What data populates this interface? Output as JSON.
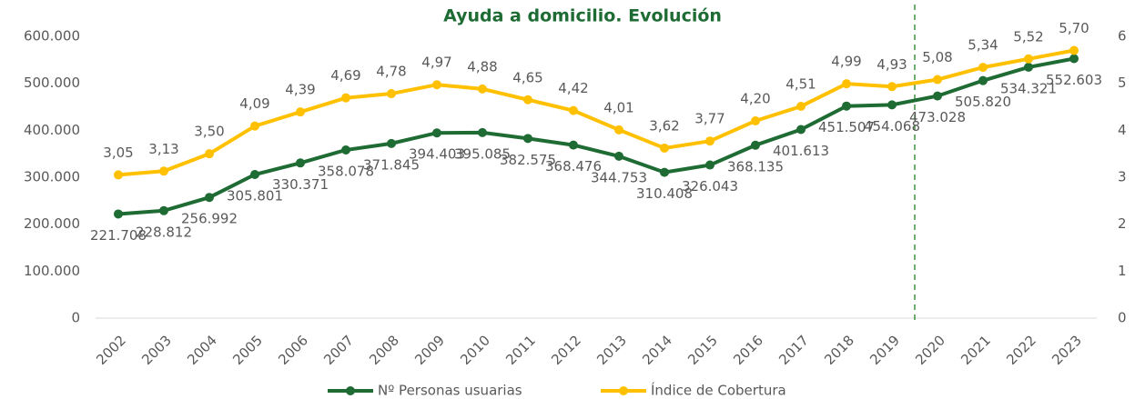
{
  "chart_data": {
    "type": "line",
    "title": "Ayuda a domicilio.  Evolución",
    "categories": [
      "2002",
      "2003",
      "2004",
      "2005",
      "2006",
      "2007",
      "2008",
      "2009",
      "2010",
      "2011",
      "2012",
      "2013",
      "2014",
      "2015",
      "2016",
      "2017",
      "2018",
      "2019",
      "2020",
      "2021",
      "2022",
      "2023"
    ],
    "series": [
      {
        "name": "Nº Personas usuarias",
        "color": "#1e6b34",
        "values": [
          221708,
          228812,
          256992,
          305801,
          330371,
          358078,
          371845,
          394403,
          395085,
          382575,
          368476,
          344753,
          310408,
          326043,
          368135,
          401613,
          451507,
          454068,
          473028,
          505820,
          534321,
          552603
        ],
        "value_labels": [
          "221.708",
          "228.812",
          "256.992",
          "305.801",
          "330.371",
          "358.078",
          "371.845",
          "394.403",
          "395.085",
          "382.575",
          "368.476",
          "344.753",
          "310.408",
          "326.043",
          "368.135",
          "401.613",
          "451.507",
          "454.068",
          "473.028",
          "505.820",
          "534.321",
          "552.603"
        ]
      },
      {
        "name": "Índice de Cobertura",
        "color": "#ffc000",
        "axis": "y2",
        "values": [
          3.05,
          3.13,
          3.5,
          4.09,
          4.39,
          4.69,
          4.78,
          4.97,
          4.88,
          4.65,
          4.42,
          4.01,
          3.62,
          3.77,
          4.2,
          4.51,
          4.99,
          4.93,
          5.08,
          5.34,
          5.52,
          5.7
        ],
        "value_labels": [
          "3,05",
          "3,13",
          "3,50",
          "4,09",
          "4,39",
          "4,69",
          "4,78",
          "4,97",
          "4,88",
          "4,65",
          "4,42",
          "4,01",
          "3,62",
          "3,77",
          "4,20",
          "4,51",
          "4,99",
          "4,93",
          "5,08",
          "5,34",
          "5,52",
          "5,70"
        ]
      }
    ],
    "ylim": [
      0,
      600000
    ],
    "yticks": [
      0,
      {
        "value": 100000,
        "label": "100.000"
      },
      {
        "value": 200000,
        "label": "200.000"
      },
      {
        "value": 300000,
        "label": "300.000"
      },
      {
        "value": 400000,
        "label": "400.000"
      },
      {
        "value": 500000,
        "label": "500.000"
      },
      {
        "value": 600000,
        "label": "600.000"
      }
    ],
    "y2lim": [
      0,
      6
    ],
    "y2ticks": [
      0,
      1,
      2,
      3,
      4,
      5,
      6
    ],
    "legend": "bottom"
  }
}
